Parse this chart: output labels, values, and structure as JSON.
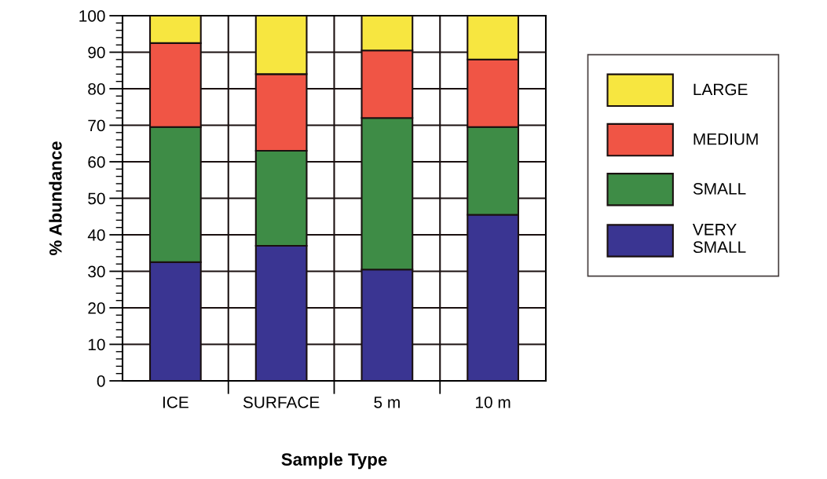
{
  "chart_data": {
    "type": "bar",
    "stacked": true,
    "xlabel": "Sample Type",
    "ylabel": "% Abundance",
    "categories": [
      "ICE",
      "SURFACE",
      "5 m",
      "10 m"
    ],
    "series": [
      {
        "name": "VERY\nSMALL",
        "color": "#3a3592",
        "values": [
          32.5,
          37,
          30.5,
          45.5
        ]
      },
      {
        "name": "SMALL",
        "color": "#3e8c46",
        "values": [
          37,
          26,
          41.5,
          24
        ]
      },
      {
        "name": "MEDIUM",
        "color": "#f05545",
        "values": [
          23,
          21,
          18.5,
          18.5
        ]
      },
      {
        "name": "LARGE",
        "color": "#f7e640",
        "values": [
          7.5,
          16,
          9.5,
          12
        ]
      }
    ],
    "ylim": [
      0,
      100
    ],
    "yticks": [
      0,
      10,
      20,
      30,
      40,
      50,
      60,
      70,
      80,
      90,
      100
    ],
    "grid": true,
    "legend": "right"
  }
}
